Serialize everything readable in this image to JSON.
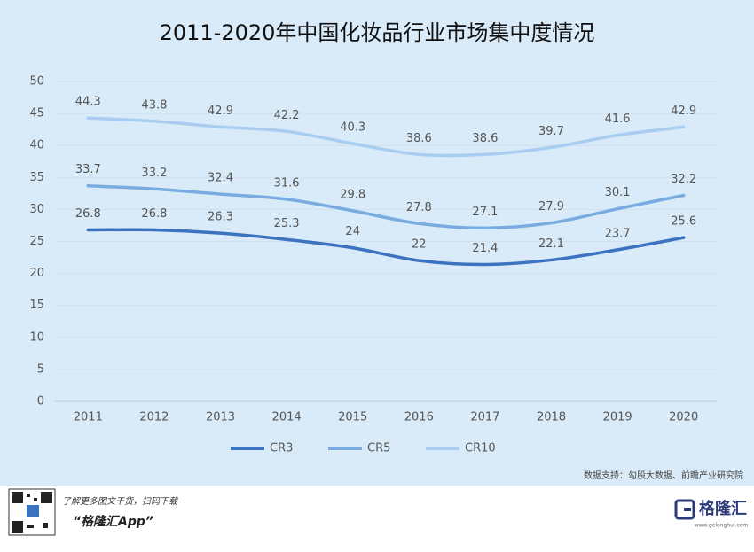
{
  "chart_data": {
    "type": "line",
    "title": "2011-2020年中国化妆品行业市场集中度情况",
    "categories": [
      "2011",
      "2012",
      "2013",
      "2014",
      "2015",
      "2016",
      "2017",
      "2018",
      "2019",
      "2020"
    ],
    "series": [
      {
        "name": "CR3",
        "color": "#3b73c1",
        "values": [
          26.8,
          26.8,
          26.3,
          25.3,
          24,
          22,
          21.4,
          22.1,
          23.7,
          25.6
        ]
      },
      {
        "name": "CR5",
        "color": "#78ace0",
        "values": [
          33.7,
          33.2,
          32.4,
          31.6,
          29.8,
          27.8,
          27.1,
          27.9,
          30.1,
          32.2
        ]
      },
      {
        "name": "CR10",
        "color": "#a8cdf0",
        "values": [
          44.3,
          43.8,
          42.9,
          42.2,
          40.3,
          38.6,
          38.6,
          39.7,
          41.6,
          42.9
        ]
      }
    ],
    "ylim": [
      0,
      50
    ],
    "yticks": [
      0,
      5,
      10,
      15,
      20,
      25,
      30,
      35,
      40,
      45,
      50
    ],
    "grid": true,
    "legend": "bottom",
    "source": "数据支持：勾股大数据、前瞻产业研究院"
  },
  "footer": {
    "promo": "了解更多图文干货，扫码下载",
    "app": "“格隆汇App”",
    "logo": "格隆汇",
    "site": "www.gelonghui.com"
  }
}
